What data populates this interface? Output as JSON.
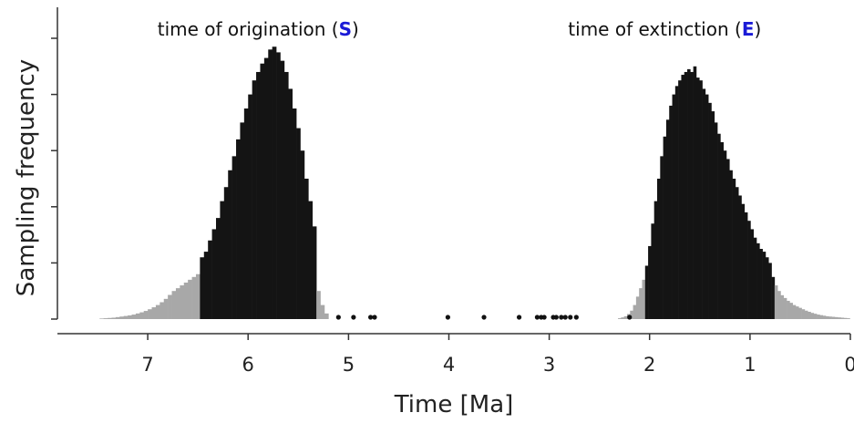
{
  "chart_data": {
    "type": "bar",
    "xlabel": "Time [Ma]",
    "ylabel": "Sampling frequency",
    "xlim": [
      7.9,
      0
    ],
    "ylim": [
      0,
      1
    ],
    "x_ticks": [
      "7",
      "6",
      "5",
      "4",
      "3",
      "2",
      "1",
      "0"
    ],
    "grid": false,
    "annotations": [
      {
        "prefix": "time of origination (",
        "key": "S",
        "suffix": ")",
        "x": 5.9
      },
      {
        "prefix": "time of extinction (",
        "key": "E",
        "suffix": ")",
        "x": 1.85
      }
    ],
    "colors": {
      "key_letters": "#1a1ad6",
      "core_bars": "#141414",
      "tail_bars": "#a8a8a8",
      "occurrences": "#111111"
    },
    "occurrences": [
      5.1,
      4.95,
      4.78,
      4.74,
      4.01,
      3.65,
      3.3,
      3.12,
      3.08,
      3.05,
      2.96,
      2.93,
      2.88,
      2.84,
      2.79,
      2.73,
      2.2
    ],
    "series": [
      {
        "core_range": [
          6.47,
          5.33
        ],
        "bin_width": 0.04,
        "x": [
          7.46,
          7.42,
          7.38,
          7.34,
          7.3,
          7.26,
          7.22,
          7.18,
          7.14,
          7.1,
          7.06,
          7.02,
          6.98,
          6.94,
          6.9,
          6.86,
          6.82,
          6.78,
          6.74,
          6.7,
          6.66,
          6.62,
          6.58,
          6.54,
          6.5,
          6.46,
          6.42,
          6.38,
          6.34,
          6.3,
          6.26,
          6.22,
          6.18,
          6.14,
          6.1,
          6.06,
          6.02,
          5.98,
          5.94,
          5.9,
          5.86,
          5.82,
          5.78,
          5.74,
          5.7,
          5.66,
          5.62,
          5.58,
          5.54,
          5.5,
          5.46,
          5.42,
          5.38,
          5.34,
          5.3,
          5.26,
          5.22
        ],
        "values": [
          0.002,
          0.003,
          0.004,
          0.005,
          0.007,
          0.009,
          0.011,
          0.013,
          0.016,
          0.02,
          0.024,
          0.029,
          0.035,
          0.042,
          0.05,
          0.06,
          0.072,
          0.086,
          0.1,
          0.11,
          0.12,
          0.13,
          0.14,
          0.15,
          0.16,
          0.22,
          0.24,
          0.28,
          0.32,
          0.36,
          0.42,
          0.47,
          0.53,
          0.58,
          0.64,
          0.7,
          0.75,
          0.8,
          0.85,
          0.88,
          0.91,
          0.93,
          0.96,
          0.97,
          0.95,
          0.92,
          0.88,
          0.82,
          0.75,
          0.68,
          0.6,
          0.5,
          0.42,
          0.33,
          0.1,
          0.05,
          0.02
        ]
      },
      {
        "core_range": [
          2.03,
          0.77
        ],
        "bin_width": 0.03,
        "x": [
          2.3,
          2.27,
          2.24,
          2.21,
          2.18,
          2.15,
          2.12,
          2.09,
          2.06,
          2.03,
          2.0,
          1.97,
          1.94,
          1.91,
          1.88,
          1.85,
          1.82,
          1.79,
          1.76,
          1.73,
          1.7,
          1.67,
          1.64,
          1.61,
          1.58,
          1.55,
          1.52,
          1.49,
          1.46,
          1.43,
          1.4,
          1.37,
          1.34,
          1.31,
          1.28,
          1.25,
          1.22,
          1.19,
          1.16,
          1.13,
          1.1,
          1.07,
          1.04,
          1.01,
          0.98,
          0.95,
          0.92,
          0.89,
          0.86,
          0.83,
          0.8,
          0.77,
          0.74,
          0.71,
          0.68,
          0.65,
          0.62,
          0.59,
          0.56,
          0.53,
          0.5,
          0.47,
          0.44,
          0.41,
          0.38,
          0.35,
          0.32,
          0.29,
          0.26,
          0.23,
          0.2,
          0.17,
          0.14,
          0.11,
          0.08,
          0.05,
          0.02
        ],
        "values": [
          0.003,
          0.006,
          0.01,
          0.018,
          0.03,
          0.05,
          0.08,
          0.11,
          0.14,
          0.19,
          0.26,
          0.34,
          0.42,
          0.5,
          0.58,
          0.65,
          0.71,
          0.76,
          0.8,
          0.83,
          0.85,
          0.87,
          0.88,
          0.89,
          0.88,
          0.9,
          0.86,
          0.85,
          0.82,
          0.8,
          0.77,
          0.74,
          0.7,
          0.66,
          0.63,
          0.6,
          0.57,
          0.53,
          0.5,
          0.47,
          0.44,
          0.41,
          0.38,
          0.35,
          0.32,
          0.29,
          0.27,
          0.25,
          0.24,
          0.22,
          0.2,
          0.15,
          0.12,
          0.1,
          0.085,
          0.075,
          0.065,
          0.058,
          0.05,
          0.045,
          0.04,
          0.035,
          0.03,
          0.026,
          0.022,
          0.019,
          0.016,
          0.014,
          0.012,
          0.01,
          0.009,
          0.008,
          0.007,
          0.006,
          0.005,
          0.004,
          0.003
        ]
      }
    ]
  }
}
